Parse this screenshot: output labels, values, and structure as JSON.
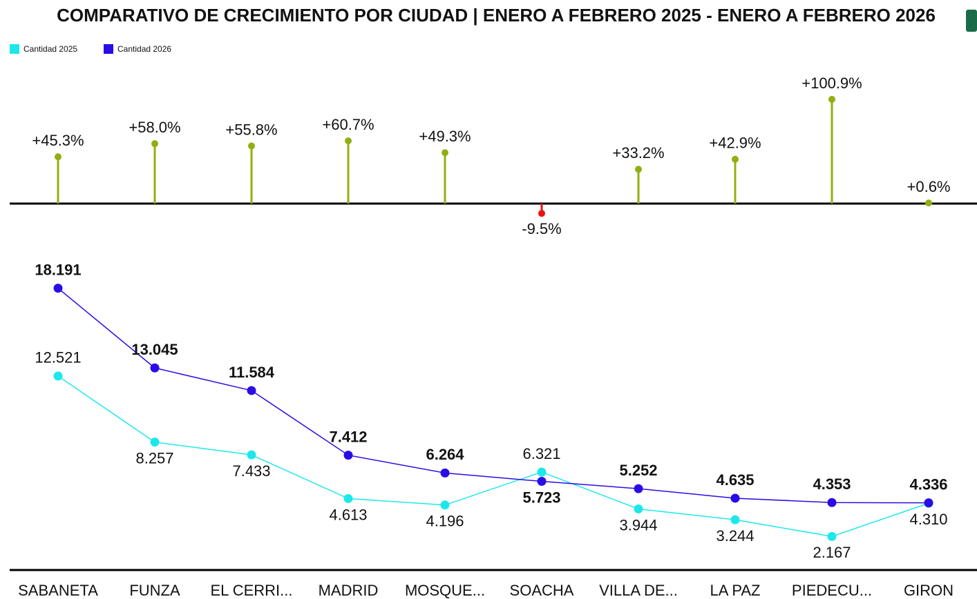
{
  "chart_data": [
    {
      "type": "lollipop",
      "title": "COMPARATIVO DE CRECIMIENTO POR CIUDAD | ENERO A FEBRERO 2025 - ENERO A FEBRERO 2026",
      "values": [
        45.3,
        58.0,
        55.8,
        60.7,
        49.3,
        -9.5,
        33.2,
        42.9,
        100.9,
        0.6
      ],
      "value_labels": [
        "+45.3%",
        "+58.0%",
        "+55.8%",
        "+60.7%",
        "+49.3%",
        "-9.5%",
        "+33.2%",
        "+42.9%",
        "+100.9%",
        "+0.6%"
      ],
      "color": "#8fb010",
      "negative_color": "#ee1111"
    },
    {
      "type": "line",
      "categories": [
        "SABANETA",
        "FUNZA",
        "EL CERRI...",
        "MADRID",
        "MOSQUE...",
        "SOACHA",
        "VILLA DE...",
        "LA PAZ",
        "PIEDECU...",
        "GIRON"
      ],
      "series": [
        {
          "name": "Cantidad 2025",
          "color": "#1ce8ec",
          "values": [
            12521,
            8257,
            7433,
            4613,
            4196,
            6321,
            3944,
            3244,
            2167,
            4310
          ],
          "value_labels": [
            "12.521",
            "8.257",
            "7.433",
            "4.613",
            "4.196",
            "6.321",
            "3.944",
            "3.244",
            "2.167",
            "4.310"
          ]
        },
        {
          "name": "Cantidad 2026",
          "color": "#2a0ce6",
          "values": [
            18191,
            13045,
            11584,
            7412,
            6264,
            5723,
            5252,
            4635,
            4353,
            4336
          ],
          "value_labels": [
            "18.191",
            "13.045",
            "11.584",
            "7.412",
            "6.264",
            "5.723",
            "5.252",
            "4.635",
            "4.353",
            "4.336"
          ]
        }
      ],
      "legend": "top-left"
    }
  ]
}
